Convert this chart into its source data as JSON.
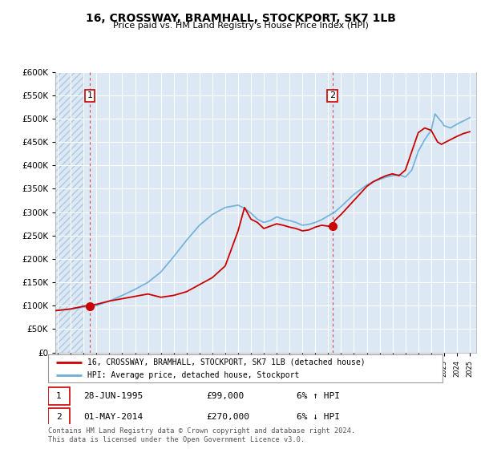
{
  "title": "16, CROSSWAY, BRAMHALL, STOCKPORT, SK7 1LB",
  "subtitle": "Price paid vs. HM Land Registry's House Price Index (HPI)",
  "legend_line1": "16, CROSSWAY, BRAMHALL, STOCKPORT, SK7 1LB (detached house)",
  "legend_line2": "HPI: Average price, detached house, Stockport",
  "transaction1_date": "28-JUN-1995",
  "transaction1_price": "£99,000",
  "transaction1_hpi": "6% ↑ HPI",
  "transaction2_date": "01-MAY-2014",
  "transaction2_price": "£270,000",
  "transaction2_hpi": "6% ↓ HPI",
  "footer": "Contains HM Land Registry data © Crown copyright and database right 2024.\nThis data is licensed under the Open Government Licence v3.0.",
  "transaction1_year": 1995.49,
  "transaction1_value": 99000,
  "transaction2_year": 2014.33,
  "transaction2_value": 270000,
  "hpi_color": "#6baed6",
  "price_color": "#cc0000",
  "bg_color": "#dce9f5",
  "grid_color": "#ffffff",
  "ylim": [
    0,
    600000
  ],
  "xlim_start": 1992.8,
  "xlim_end": 2025.5,
  "hpi_years": [
    1992,
    1993,
    1994,
    1995,
    1996,
    1997,
    1998,
    1999,
    2000,
    2001,
    2002,
    2003,
    2004,
    2005,
    2006,
    2007,
    2007.5,
    2008,
    2008.5,
    2009,
    2009.5,
    2010,
    2010.5,
    2011,
    2011.5,
    2012,
    2012.5,
    2013,
    2013.5,
    2014,
    2014.5,
    2015,
    2015.5,
    2016,
    2016.5,
    2017,
    2017.5,
    2018,
    2018.5,
    2019,
    2019.5,
    2020,
    2020.5,
    2021,
    2021.5,
    2022,
    2022.3,
    2022.6,
    2022.9,
    2023,
    2023.5,
    2024,
    2024.5,
    2025
  ],
  "hpi_values": [
    88000,
    90000,
    93000,
    97000,
    100000,
    110000,
    122000,
    135000,
    150000,
    172000,
    205000,
    240000,
    272000,
    295000,
    310000,
    315000,
    308000,
    298000,
    285000,
    278000,
    282000,
    290000,
    285000,
    282000,
    278000,
    272000,
    274000,
    278000,
    284000,
    292000,
    300000,
    312000,
    325000,
    338000,
    348000,
    358000,
    365000,
    370000,
    375000,
    378000,
    380000,
    375000,
    390000,
    430000,
    455000,
    475000,
    510000,
    500000,
    490000,
    485000,
    480000,
    488000,
    495000,
    502000
  ],
  "price_years": [
    1992,
    1993,
    1994,
    1995,
    1996,
    1997,
    1998,
    1999,
    2000,
    2001,
    2002,
    2003,
    2004,
    2005,
    2006,
    2007,
    2007.5,
    2008,
    2008.5,
    2009,
    2009.5,
    2010,
    2010.5,
    2011,
    2011.5,
    2012,
    2012.5,
    2013,
    2013.5,
    2014,
    2014.33,
    2014.5,
    2015,
    2015.5,
    2016,
    2016.5,
    2017,
    2017.5,
    2018,
    2018.5,
    2019,
    2019.5,
    2020,
    2020.5,
    2021,
    2021.5,
    2022,
    2022.3,
    2022.5,
    2022.8,
    2023,
    2023.5,
    2024,
    2024.5,
    2025
  ],
  "price_values": [
    88000,
    90000,
    93000,
    99000,
    103000,
    110000,
    115000,
    120000,
    125000,
    118000,
    122000,
    130000,
    145000,
    160000,
    185000,
    260000,
    310000,
    285000,
    278000,
    265000,
    270000,
    275000,
    272000,
    268000,
    265000,
    260000,
    262000,
    268000,
    272000,
    270000,
    270000,
    282000,
    295000,
    310000,
    325000,
    340000,
    355000,
    365000,
    372000,
    378000,
    382000,
    378000,
    390000,
    430000,
    470000,
    480000,
    475000,
    460000,
    450000,
    445000,
    448000,
    455000,
    462000,
    468000,
    472000
  ]
}
